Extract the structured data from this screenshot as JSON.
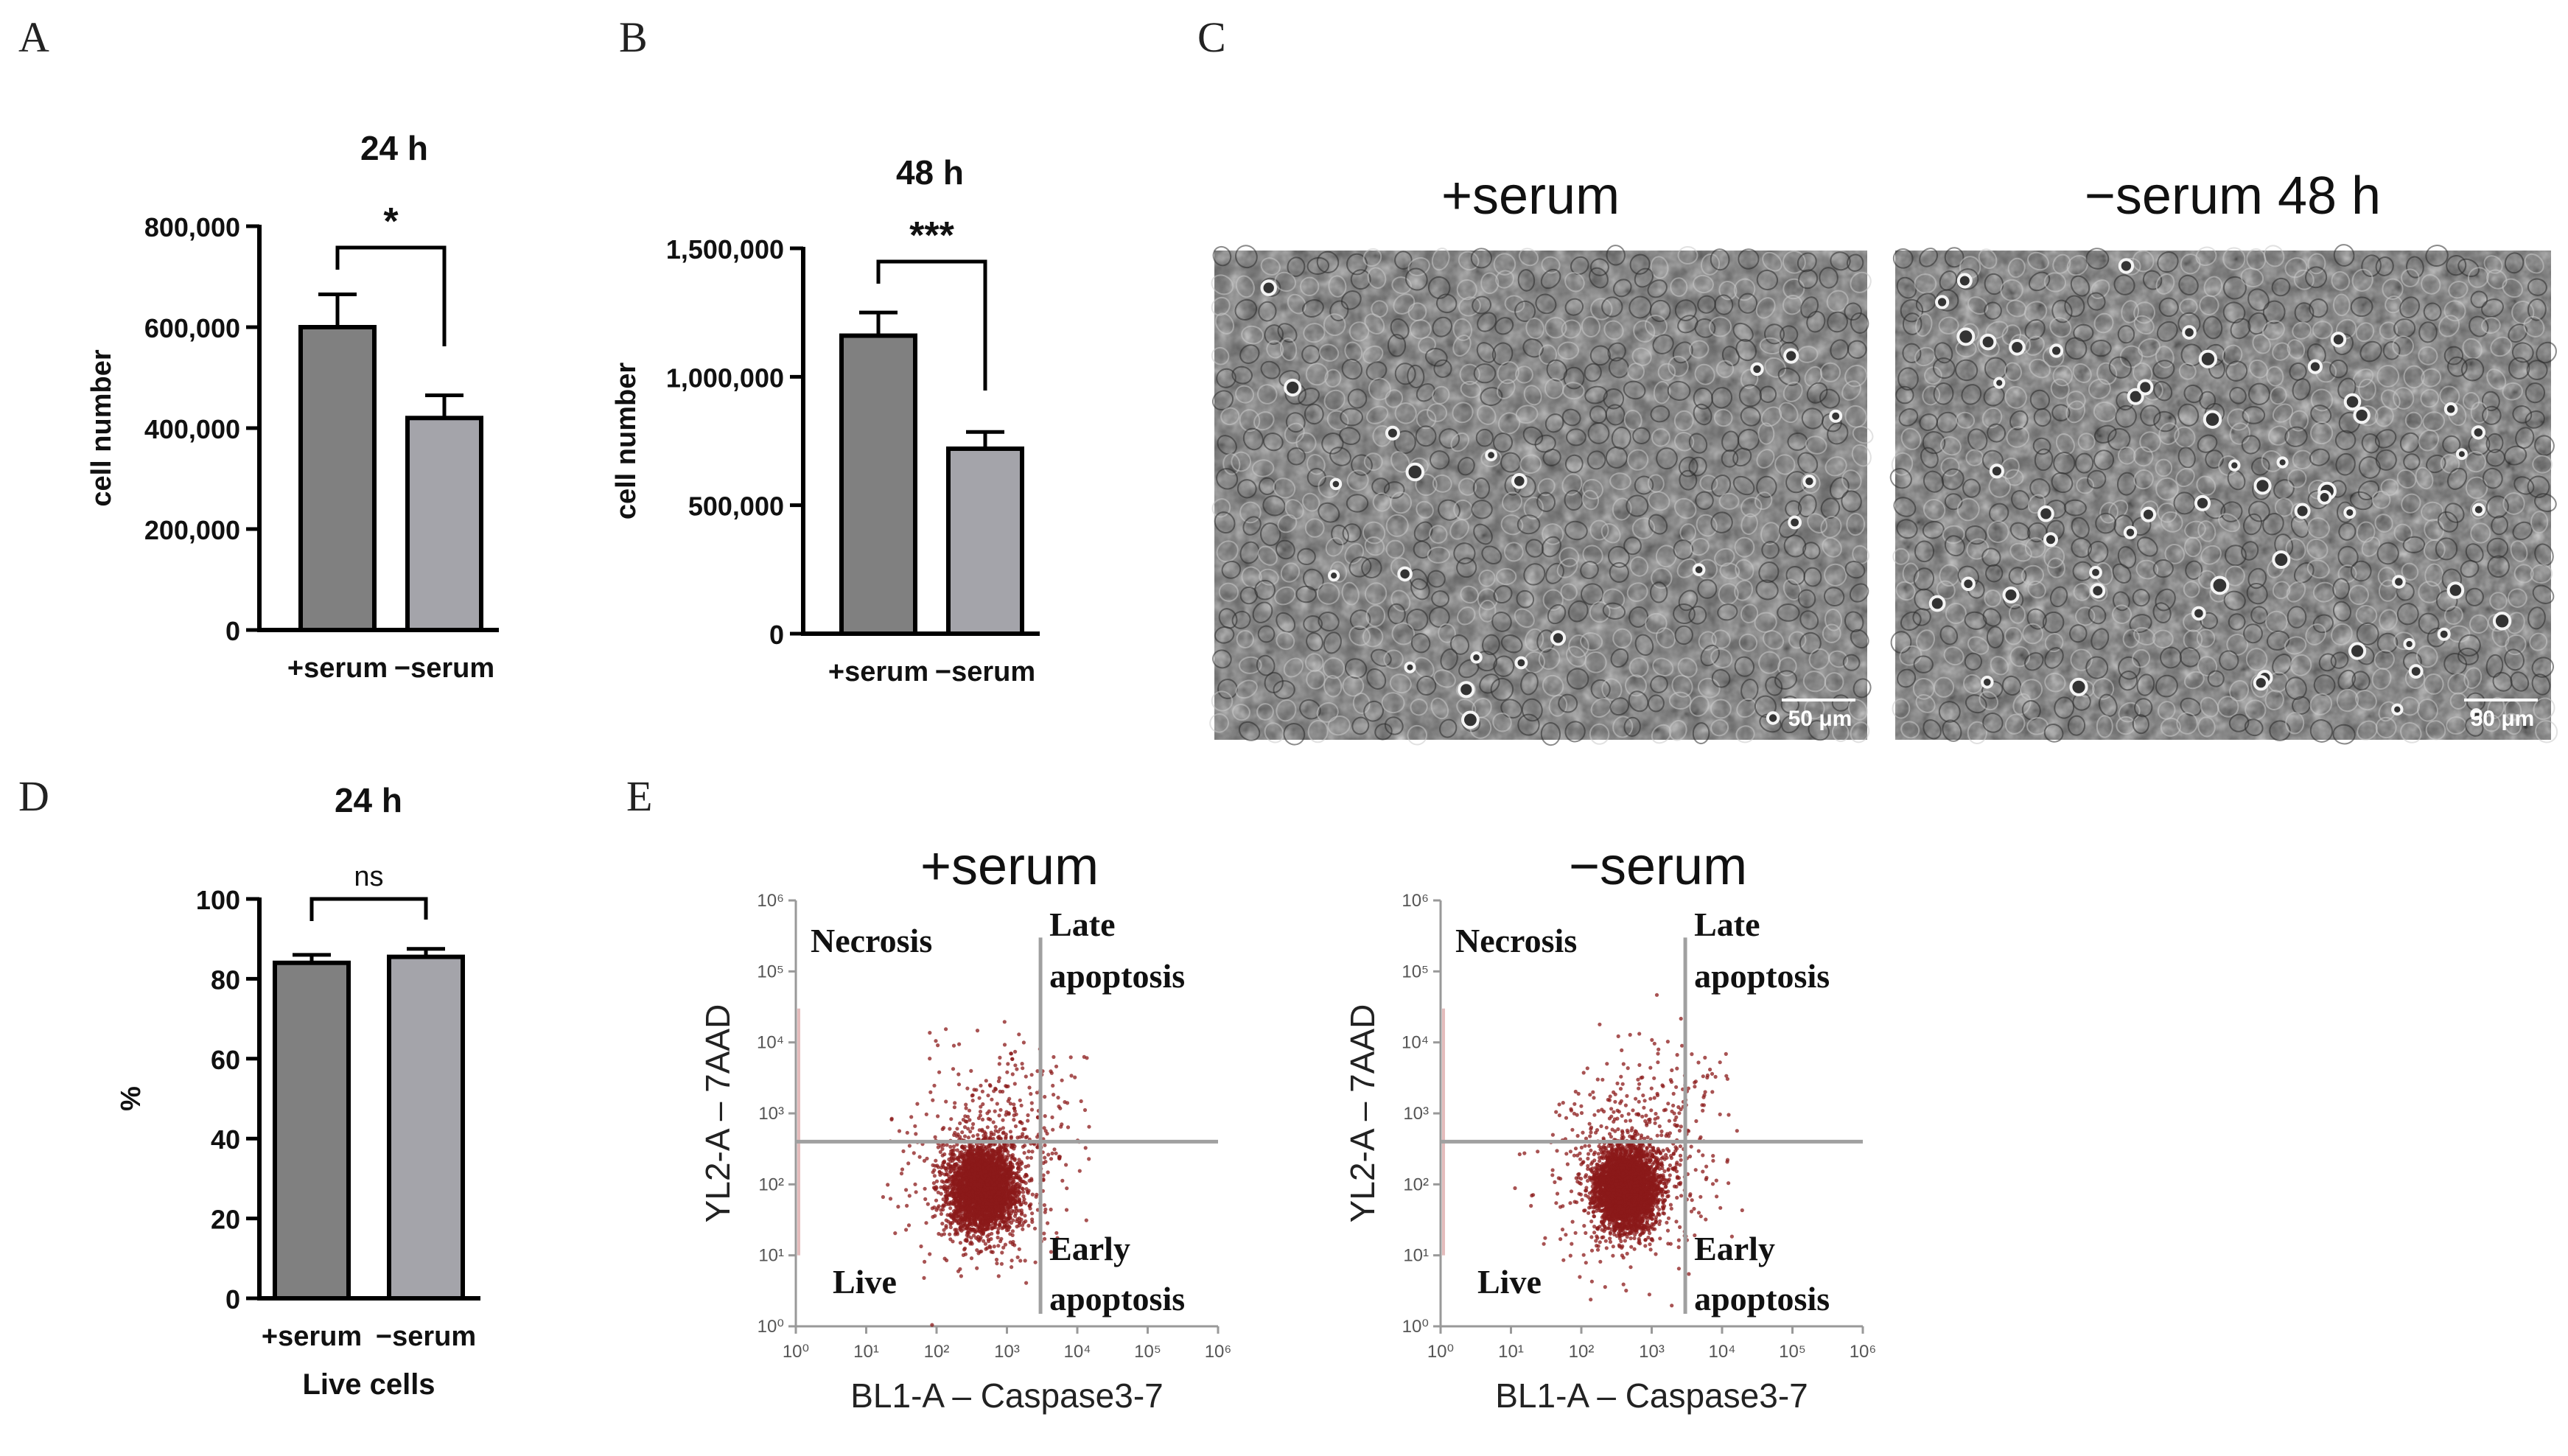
{
  "panels": {
    "A": {
      "letter": "A"
    },
    "B": {
      "letter": "B"
    },
    "C": {
      "letter": "C",
      "img_titles": [
        "+serum",
        "−serum 48 h"
      ],
      "scale_label": "50 μm"
    },
    "D": {
      "letter": "D"
    },
    "E": {
      "letter": "E"
    }
  },
  "colors": {
    "bar_dark": "#808080",
    "bar_light": "#a4a4aa",
    "dots": "#8b1a1a",
    "gate": "#a0a0a0",
    "micro_bg": "#5a5a5a"
  },
  "chart_data": [
    {
      "id": "A",
      "type": "bar",
      "title": "24 h",
      "categories": [
        "+serum",
        "−serum"
      ],
      "values": [
        600000,
        420000
      ],
      "errors": [
        65000,
        45000
      ],
      "ylabel": "cell number",
      "ylim": [
        0,
        800000
      ],
      "yticks": [
        0,
        200000,
        400000,
        600000,
        800000
      ],
      "ytick_labels": [
        "0",
        "200,000",
        "400,000",
        "600,000",
        "800,000"
      ],
      "significance": "*"
    },
    {
      "id": "B",
      "type": "bar",
      "title": "48 h",
      "categories": [
        "+serum",
        "−serum"
      ],
      "values": [
        1160000,
        720000
      ],
      "errors": [
        90000,
        65000
      ],
      "ylabel": "cell number",
      "ylim": [
        0,
        1500000
      ],
      "yticks": [
        0,
        500000,
        1000000,
        1500000
      ],
      "ytick_labels": [
        "0",
        "500,000",
        "1,000,000",
        "1,500,000"
      ],
      "significance": "***"
    },
    {
      "id": "D",
      "type": "bar",
      "title": "24 h",
      "categories": [
        "+serum",
        "−serum"
      ],
      "values": [
        84,
        85.5
      ],
      "errors": [
        2,
        2
      ],
      "ylabel": "%",
      "xlabel": "Live cells",
      "ylim": [
        0,
        100
      ],
      "yticks": [
        0,
        20,
        40,
        60,
        80,
        100
      ],
      "ytick_labels": [
        "0",
        "20",
        "40",
        "60",
        "80",
        "100"
      ],
      "significance": "ns"
    },
    {
      "id": "E1",
      "type": "scatter",
      "title": "+serum",
      "xlabel": "BL1-A – Caspase3-7",
      "ylabel": "YL2-A – 7AAD",
      "xscale": "log",
      "yscale": "log",
      "xlim": [
        1,
        1000000
      ],
      "ylim": [
        1,
        1000000
      ],
      "ticks": [
        "10⁰",
        "10¹",
        "10²",
        "10³",
        "10⁴",
        "10⁵",
        "10⁶"
      ],
      "gate_x": 3000,
      "gate_y": 400,
      "quadrants": {
        "necrosis": "Necrosis",
        "late": [
          "Late",
          "apoptosis"
        ],
        "live": "Live",
        "early": [
          "Early",
          "apoptosis"
        ]
      }
    },
    {
      "id": "E2",
      "type": "scatter",
      "title": "−serum",
      "xlabel": "BL1-A – Caspase3-7",
      "ylabel": "YL2-A – 7AAD",
      "xscale": "log",
      "yscale": "log",
      "xlim": [
        1,
        1000000
      ],
      "ylim": [
        1,
        1000000
      ],
      "ticks": [
        "10⁰",
        "10¹",
        "10²",
        "10³",
        "10⁴",
        "10⁵",
        "10⁶"
      ],
      "gate_x": 3000,
      "gate_y": 400,
      "quadrants": {
        "necrosis": "Necrosis",
        "late": [
          "Late",
          "apoptosis"
        ],
        "live": "Live",
        "early": [
          "Early",
          "apoptosis"
        ]
      }
    }
  ]
}
